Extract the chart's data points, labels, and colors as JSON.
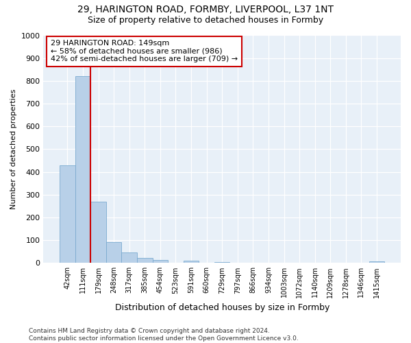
{
  "title1": "29, HARINGTON ROAD, FORMBY, LIVERPOOL, L37 1NT",
  "title2": "Size of property relative to detached houses in Formby",
  "xlabel": "Distribution of detached houses by size in Formby",
  "ylabel": "Number of detached properties",
  "bar_values": [
    430,
    820,
    270,
    92,
    47,
    22,
    14,
    0,
    10,
    0,
    5,
    0,
    0,
    0,
    0,
    0,
    0,
    0,
    0,
    0,
    8
  ],
  "tick_labels": [
    "42sqm",
    "111sqm",
    "179sqm",
    "248sqm",
    "317sqm",
    "385sqm",
    "454sqm",
    "523sqm",
    "591sqm",
    "660sqm",
    "729sqm",
    "797sqm",
    "866sqm",
    "934sqm",
    "1003sqm",
    "1072sqm",
    "1140sqm",
    "1209sqm",
    "1278sqm",
    "1346sqm",
    "1415sqm"
  ],
  "bar_color": "#b8d0e8",
  "bar_edge_color": "#7aaacf",
  "vline_color": "#cc0000",
  "annotation_text": "29 HARINGTON ROAD: 149sqm\n← 58% of detached houses are smaller (986)\n42% of semi-detached houses are larger (709) →",
  "annotation_box_color": "#ffffff",
  "annotation_box_edge": "#cc0000",
  "ylim": [
    0,
    1000
  ],
  "yticks": [
    0,
    100,
    200,
    300,
    400,
    500,
    600,
    700,
    800,
    900,
    1000
  ],
  "bg_color": "#e8f0f8",
  "footer": "Contains HM Land Registry data © Crown copyright and database right 2024.\nContains public sector information licensed under the Open Government Licence v3.0.",
  "title1_fontsize": 10,
  "title2_fontsize": 9,
  "xlabel_fontsize": 9,
  "ylabel_fontsize": 8,
  "tick_fontsize": 7,
  "annot_fontsize": 8,
  "footer_fontsize": 6.5
}
